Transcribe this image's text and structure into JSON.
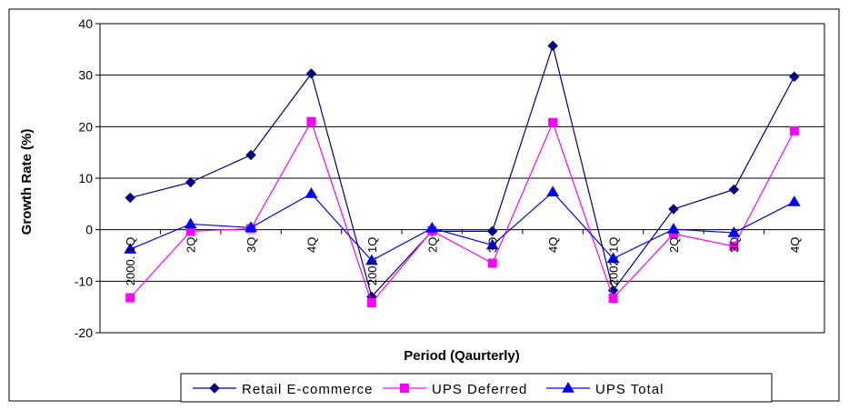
{
  "chart_data": {
    "type": "line",
    "title": "",
    "xlabel": "Period (Qaurterly)",
    "ylabel": "Growth Rate (%)",
    "ylim": [
      -20,
      40
    ],
    "yticks": [
      "40",
      "30",
      "20",
      "10",
      "0",
      "-10",
      "-20"
    ],
    "grid": "horizontal",
    "legend_position": "bottom",
    "categories": [
      "2000. 1Q",
      "2Q",
      "3Q",
      "4Q",
      "2001. 1Q",
      "2Q",
      "3Q",
      "4Q",
      "2002. 1Q",
      "2Q",
      "3Q",
      "4Q"
    ],
    "series": [
      {
        "name": "Retail E-commerce",
        "color": "#000080",
        "marker": "diamond",
        "values": [
          6.2,
          9.2,
          14.5,
          30.3,
          -13.0,
          -0.3,
          -0.3,
          35.7,
          -11.8,
          4.0,
          7.8,
          29.7
        ]
      },
      {
        "name": "UPS Deferred",
        "color": "#FF00FF",
        "marker": "square",
        "values": [
          -13.2,
          -0.3,
          0.2,
          21.0,
          -14.2,
          -0.2,
          -6.5,
          20.8,
          -13.3,
          -0.8,
          -3.2,
          19.2
        ]
      },
      {
        "name": "UPS Total",
        "color": "#0000FF",
        "marker": "triangle",
        "values": [
          -3.8,
          1.1,
          0.4,
          7.0,
          -6.0,
          0.3,
          -3.0,
          7.3,
          -5.6,
          0.1,
          -0.6,
          5.4
        ]
      }
    ]
  }
}
